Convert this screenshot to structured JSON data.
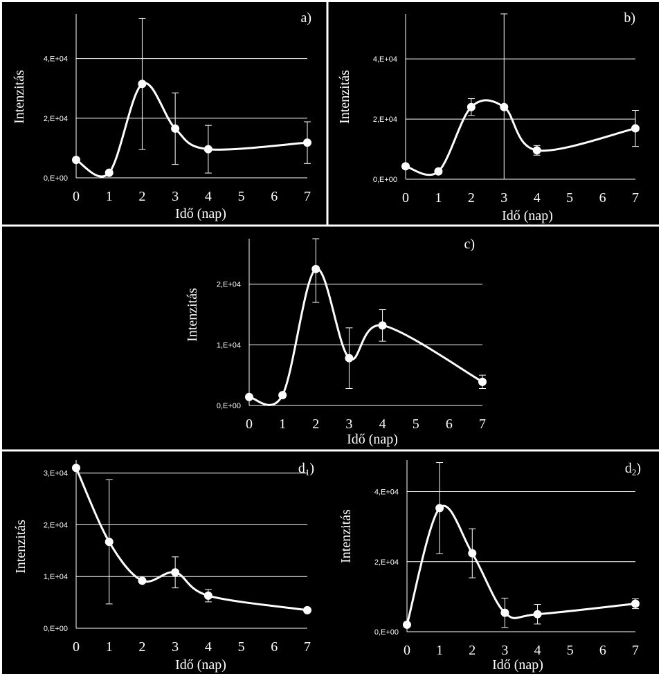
{
  "chart_data": [
    {
      "type": "line",
      "title": "a)",
      "xlabel": "Idő (nap)",
      "ylabel": "Intenzitás",
      "x_ticks": [
        "0",
        "1",
        "2",
        "3",
        "4",
        "5",
        "6",
        "7"
      ],
      "y_ticks": [
        "0,E+00",
        "2,E+04",
        "4,E+04"
      ],
      "ylim": [
        0,
        55000
      ],
      "xlim": [
        0,
        7
      ],
      "grid": "horizontal",
      "series": [
        {
          "x": [
            0,
            1,
            2,
            3,
            4,
            7
          ],
          "y": [
            6000,
            1700,
            31500,
            16500,
            9600,
            11800
          ],
          "err": [
            0,
            0,
            22000,
            12000,
            8000,
            7000
          ]
        }
      ]
    },
    {
      "type": "line",
      "title": "b)",
      "xlabel": "Idő (nap)",
      "ylabel": "Intenzitás",
      "x_ticks": [
        "0",
        "1",
        "2",
        "3",
        "4",
        "5",
        "6",
        "7"
      ],
      "y_ticks": [
        "0,E+00",
        "2,E+04",
        "4,E+04"
      ],
      "ylim": [
        0,
        55000
      ],
      "xlim": [
        0,
        7
      ],
      "grid": "horizontal",
      "series": [
        {
          "x": [
            0,
            1,
            2,
            3,
            4,
            7
          ],
          "y": [
            4300,
            2600,
            24000,
            24000,
            9600,
            16900
          ],
          "err": [
            0,
            0,
            2800,
            32000,
            1600,
            6000
          ]
        }
      ]
    },
    {
      "type": "line",
      "title": "c)",
      "xlabel": "Idő (nap)",
      "ylabel": "Intenzitás",
      "x_ticks": [
        "0",
        "1",
        "2",
        "3",
        "4",
        "5",
        "6",
        "7"
      ],
      "y_ticks": [
        "0,E+00",
        "1,E+04",
        "2,E+04"
      ],
      "ylim": [
        0,
        27500
      ],
      "xlim": [
        0,
        7
      ],
      "grid": "horizontal",
      "series": [
        {
          "x": [
            0,
            1,
            2,
            3,
            4,
            7
          ],
          "y": [
            1400,
            1700,
            22500,
            7800,
            13200,
            3900
          ],
          "err": [
            0,
            0,
            5500,
            5000,
            2600,
            1100
          ]
        }
      ]
    },
    {
      "type": "line",
      "title": "d1)",
      "xlabel": "Idő (nap)",
      "ylabel": "Intenzitás",
      "x_ticks": [
        "0",
        "1",
        "2",
        "3",
        "4",
        "5",
        "6",
        "7"
      ],
      "y_ticks": [
        "0,E+00",
        "1,E+04",
        "2,E+04",
        "3,E+04"
      ],
      "ylim": [
        0,
        32500
      ],
      "xlim": [
        0,
        7
      ],
      "grid": "horizontal",
      "series": [
        {
          "x": [
            0,
            1,
            2,
            3,
            4,
            7
          ],
          "y": [
            31000,
            16700,
            9200,
            10800,
            6300,
            3500
          ],
          "err": [
            0,
            12000,
            0,
            3000,
            1200,
            0
          ]
        }
      ]
    },
    {
      "type": "line",
      "title": "d2)",
      "xlabel": "Idő (nap)",
      "ylabel": "Intenzitás",
      "x_ticks": [
        "0",
        "1",
        "2",
        "3",
        "4",
        "5",
        "6",
        "7"
      ],
      "y_ticks": [
        "0,E+00",
        "2,E+04",
        "4,E+04"
      ],
      "ylim": [
        0,
        49000
      ],
      "xlim": [
        0,
        7
      ],
      "grid": "horizontal",
      "series": [
        {
          "x": [
            0,
            1,
            2,
            3,
            4,
            7
          ],
          "y": [
            2000,
            35300,
            22400,
            5400,
            5000,
            8000
          ],
          "err": [
            0,
            13000,
            7000,
            4200,
            2800,
            1400
          ]
        }
      ]
    }
  ]
}
